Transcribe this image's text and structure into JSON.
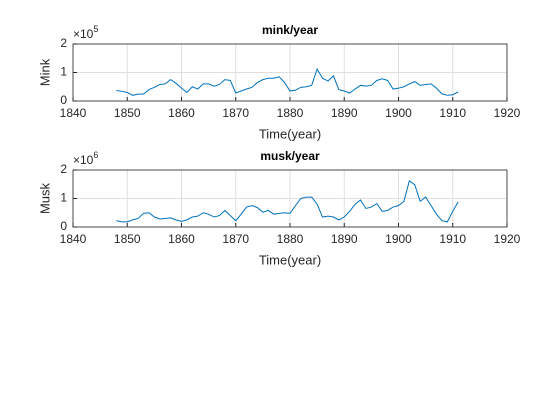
{
  "chart_data": [
    {
      "type": "line",
      "title": "mink/year",
      "xlabel": "Time(year)",
      "ylabel": "Mink",
      "multiplier": {
        "base": "×10",
        "power": "5"
      },
      "x": [
        1848,
        1849,
        1850,
        1851,
        1852,
        1853,
        1854,
        1855,
        1856,
        1857,
        1858,
        1859,
        1860,
        1861,
        1862,
        1863,
        1864,
        1865,
        1866,
        1867,
        1868,
        1869,
        1870,
        1871,
        1872,
        1873,
        1874,
        1875,
        1876,
        1877,
        1878,
        1879,
        1880,
        1881,
        1882,
        1883,
        1884,
        1885,
        1886,
        1887,
        1888,
        1889,
        1890,
        1891,
        1892,
        1893,
        1894,
        1895,
        1896,
        1897,
        1898,
        1899,
        1900,
        1901,
        1902,
        1903,
        1904,
        1905,
        1906,
        1907,
        1908,
        1909,
        1910,
        1911
      ],
      "values": [
        0.37,
        0.34,
        0.3,
        0.2,
        0.24,
        0.24,
        0.4,
        0.48,
        0.58,
        0.6,
        0.75,
        0.62,
        0.45,
        0.3,
        0.5,
        0.42,
        0.6,
        0.6,
        0.52,
        0.58,
        0.75,
        0.72,
        0.28,
        0.35,
        0.42,
        0.48,
        0.65,
        0.75,
        0.8,
        0.8,
        0.85,
        0.65,
        0.35,
        0.38,
        0.48,
        0.5,
        0.55,
        1.12,
        0.8,
        0.7,
        0.88,
        0.4,
        0.35,
        0.28,
        0.42,
        0.55,
        0.52,
        0.55,
        0.72,
        0.78,
        0.72,
        0.42,
        0.45,
        0.5,
        0.6,
        0.68,
        0.55,
        0.58,
        0.6,
        0.45,
        0.25,
        0.2,
        0.22,
        0.32
      ],
      "color": "#0072bd",
      "xlim": [
        1840,
        1920
      ],
      "xticks": [
        1840,
        1850,
        1860,
        1870,
        1880,
        1890,
        1900,
        1910,
        1920
      ],
      "ylim": [
        0,
        2
      ],
      "yticks": [
        0,
        1,
        2
      ],
      "grid": true
    },
    {
      "type": "line",
      "title": "musk/year",
      "xlabel": "Time(year)",
      "ylabel": "Musk",
      "multiplier": {
        "base": "×10",
        "power": "6"
      },
      "x": [
        1848,
        1849,
        1850,
        1851,
        1852,
        1853,
        1854,
        1855,
        1856,
        1857,
        1858,
        1859,
        1860,
        1861,
        1862,
        1863,
        1864,
        1865,
        1866,
        1867,
        1868,
        1869,
        1870,
        1871,
        1872,
        1873,
        1874,
        1875,
        1876,
        1877,
        1878,
        1879,
        1880,
        1881,
        1882,
        1883,
        1884,
        1885,
        1886,
        1887,
        1888,
        1889,
        1890,
        1891,
        1892,
        1893,
        1894,
        1895,
        1896,
        1897,
        1898,
        1899,
        1900,
        1901,
        1902,
        1903,
        1904,
        1905,
        1906,
        1907,
        1908,
        1909,
        1910,
        1911
      ],
      "values": [
        0.22,
        0.18,
        0.18,
        0.25,
        0.3,
        0.48,
        0.5,
        0.35,
        0.28,
        0.3,
        0.32,
        0.25,
        0.2,
        0.25,
        0.35,
        0.38,
        0.5,
        0.45,
        0.35,
        0.4,
        0.58,
        0.4,
        0.22,
        0.45,
        0.7,
        0.75,
        0.68,
        0.52,
        0.58,
        0.45,
        0.48,
        0.5,
        0.48,
        0.75,
        1.0,
        1.05,
        1.05,
        0.8,
        0.35,
        0.38,
        0.35,
        0.25,
        0.35,
        0.55,
        0.8,
        0.95,
        0.65,
        0.7,
        0.82,
        0.55,
        0.58,
        0.7,
        0.75,
        0.9,
        1.62,
        1.48,
        0.9,
        1.05,
        0.75,
        0.45,
        0.22,
        0.18,
        0.55,
        0.88
      ],
      "color": "#0072bd",
      "xlim": [
        1840,
        1920
      ],
      "xticks": [
        1840,
        1850,
        1860,
        1870,
        1880,
        1890,
        1900,
        1910,
        1920
      ],
      "ylim": [
        0,
        2
      ],
      "yticks": [
        0,
        1,
        2
      ],
      "grid": true
    }
  ]
}
